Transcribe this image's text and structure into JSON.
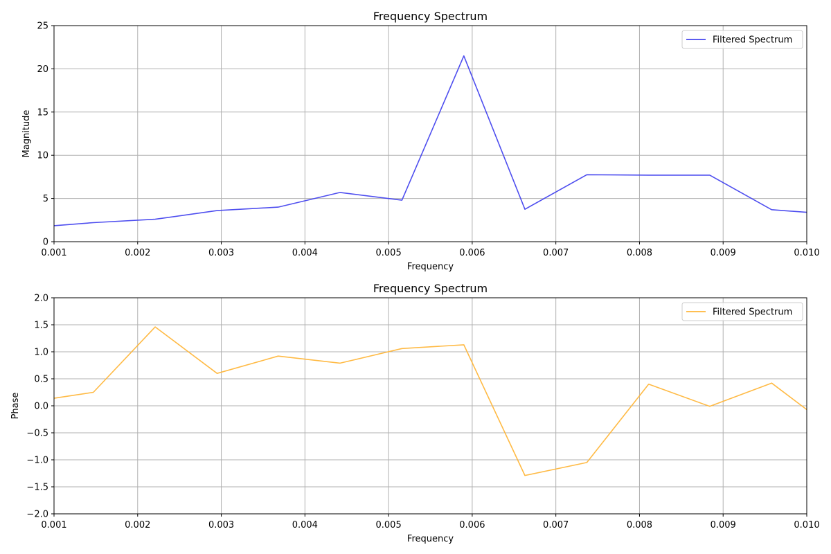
{
  "chart_data": [
    {
      "type": "line",
      "title": "Frequency Spectrum",
      "xlabel": "Frequency",
      "ylabel": "Magnitude",
      "xlim": [
        0.001,
        0.01
      ],
      "ylim": [
        0,
        25
      ],
      "xticks": [
        "0.001",
        "0.002",
        "0.003",
        "0.004",
        "0.005",
        "0.006",
        "0.007",
        "0.008",
        "0.009",
        "0.010"
      ],
      "yticks": [
        "0",
        "5",
        "10",
        "15",
        "20",
        "25"
      ],
      "grid": true,
      "legend_position": "top-right",
      "series": [
        {
          "name": "Filtered Spectrum",
          "color": "#4444ee",
          "x": [
            0.001,
            0.00147,
            0.00221,
            0.00295,
            0.00368,
            0.00442,
            0.00516,
            0.0059,
            0.00663,
            0.00737,
            0.00811,
            0.00884,
            0.00958,
            0.01
          ],
          "y": [
            1.85,
            2.2,
            2.6,
            3.6,
            4.0,
            5.7,
            4.8,
            21.5,
            3.75,
            7.75,
            7.7,
            7.7,
            3.7,
            3.4
          ]
        }
      ]
    },
    {
      "type": "line",
      "title": "Frequency Spectrum",
      "xlabel": "Frequency",
      "ylabel": "Phase",
      "xlim": [
        0.001,
        0.01
      ],
      "ylim": [
        -2.0,
        2.0
      ],
      "xticks": [
        "0.001",
        "0.002",
        "0.003",
        "0.004",
        "0.005",
        "0.006",
        "0.007",
        "0.008",
        "0.009",
        "0.010"
      ],
      "yticks": [
        "−2.0",
        "−1.5",
        "−1.0",
        "−0.5",
        "0.0",
        "0.5",
        "1.0",
        "1.5",
        "2.0"
      ],
      "grid": true,
      "legend_position": "top-right",
      "series": [
        {
          "name": "Filtered Spectrum",
          "color": "#ffb63a",
          "x": [
            0.001,
            0.00147,
            0.00221,
            0.00295,
            0.00368,
            0.00442,
            0.00516,
            0.0059,
            0.00663,
            0.00737,
            0.00811,
            0.00884,
            0.00958,
            0.01
          ],
          "y": [
            0.14,
            0.25,
            1.46,
            0.6,
            0.92,
            0.79,
            1.06,
            1.13,
            -1.29,
            -1.05,
            0.4,
            -0.01,
            0.42,
            -0.07
          ]
        }
      ]
    }
  ]
}
